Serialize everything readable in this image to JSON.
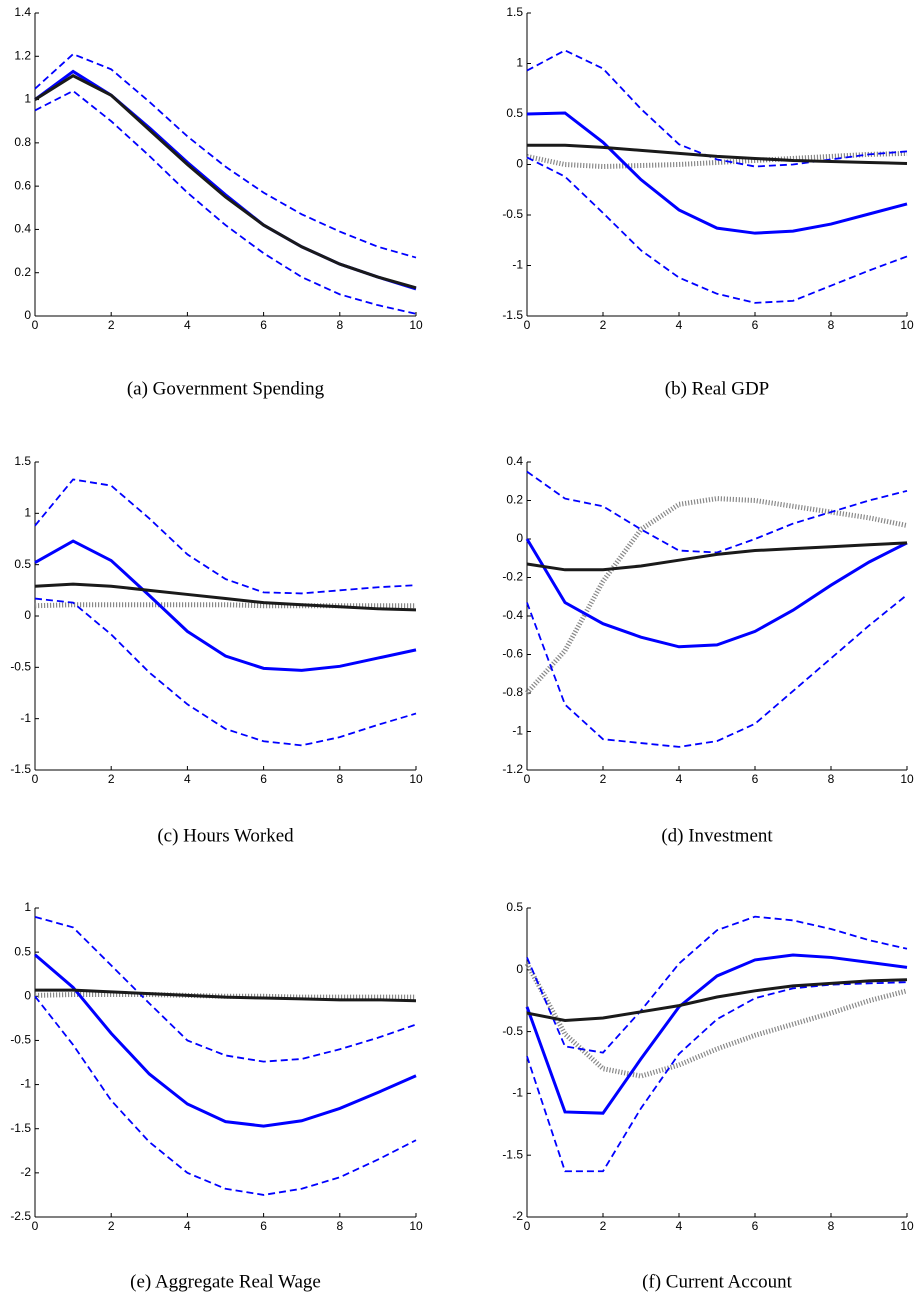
{
  "chart_data": [
    {
      "type": "line",
      "title": "(a)  Government Spending",
      "x": [
        0,
        1,
        2,
        3,
        4,
        5,
        6,
        7,
        8,
        9,
        10
      ],
      "xlim": [
        0,
        10
      ],
      "xticks": [
        0,
        2,
        4,
        6,
        8,
        10
      ],
      "ylim": [
        0,
        1.4
      ],
      "yticks": [
        0,
        0.2,
        0.4,
        0.6,
        0.8,
        1,
        1.2,
        1.4
      ],
      "series": [
        {
          "color": "#0000ff",
          "style": "dashed",
          "values": [
            1.05,
            1.21,
            1.14,
            0.99,
            0.83,
            0.69,
            0.57,
            0.47,
            0.39,
            0.32,
            0.27
          ]
        },
        {
          "color": "#0000ff",
          "style": "dashed",
          "values": [
            0.95,
            1.04,
            0.9,
            0.74,
            0.57,
            0.42,
            0.29,
            0.18,
            0.1,
            0.05,
            0.01
          ]
        },
        {
          "color": "#0000ff",
          "style": "solid",
          "values": [
            1,
            1.13,
            1.02,
            0.87,
            0.71,
            0.56,
            0.42,
            0.32,
            0.24,
            0.18,
            0.125
          ]
        },
        {
          "color": "#1a1a1a",
          "style": "solid",
          "values": [
            1,
            1.11,
            1.02,
            0.86,
            0.7,
            0.55,
            0.42,
            0.32,
            0.24,
            0.18,
            0.13
          ]
        }
      ]
    },
    {
      "type": "line",
      "title": "(b)  Real GDP",
      "x": [
        0,
        1,
        2,
        3,
        4,
        5,
        6,
        7,
        8,
        9,
        10
      ],
      "xlim": [
        0,
        10
      ],
      "xticks": [
        0,
        2,
        4,
        6,
        8,
        10
      ],
      "ylim": [
        -1.5,
        1.5
      ],
      "yticks": [
        -1.5,
        -1,
        -0.5,
        0,
        0.5,
        1,
        1.5
      ],
      "series": [
        {
          "color": "#888888",
          "style": "dotted",
          "values": [
            0.08,
            0.0,
            -0.02,
            -0.01,
            0.0,
            0.02,
            0.04,
            0.06,
            0.08,
            0.1,
            0.11
          ]
        },
        {
          "color": "#0000ff",
          "style": "dashed",
          "values": [
            0.93,
            1.13,
            0.95,
            0.55,
            0.2,
            0.05,
            -0.02,
            0.0,
            0.05,
            0.1,
            0.13
          ]
        },
        {
          "color": "#0000ff",
          "style": "dashed",
          "values": [
            0.07,
            -0.12,
            -0.48,
            -0.85,
            -1.12,
            -1.28,
            -1.37,
            -1.35,
            -1.2,
            -1.05,
            -0.91
          ]
        },
        {
          "color": "#0000ff",
          "style": "solid",
          "values": [
            0.5,
            0.51,
            0.22,
            -0.15,
            -0.45,
            -0.63,
            -0.68,
            -0.66,
            -0.59,
            -0.49,
            -0.39
          ]
        },
        {
          "color": "#1a1a1a",
          "style": "solid",
          "values": [
            0.19,
            0.19,
            0.17,
            0.14,
            0.11,
            0.08,
            0.06,
            0.04,
            0.03,
            0.02,
            0.01
          ]
        }
      ]
    },
    {
      "type": "line",
      "title": "(c)  Hours Worked",
      "x": [
        0,
        1,
        2,
        3,
        4,
        5,
        6,
        7,
        8,
        9,
        10
      ],
      "xlim": [
        0,
        10
      ],
      "xticks": [
        0,
        2,
        4,
        6,
        8,
        10
      ],
      "ylim": [
        -1.5,
        1.5
      ],
      "yticks": [
        -1.5,
        -1,
        -0.5,
        0,
        0.5,
        1,
        1.5
      ],
      "series": [
        {
          "color": "#888888",
          "style": "dotted",
          "values": [
            0.1,
            0.11,
            0.11,
            0.11,
            0.11,
            0.11,
            0.1,
            0.1,
            0.1,
            0.1,
            0.1
          ]
        },
        {
          "color": "#0000ff",
          "style": "dashed",
          "values": [
            0.88,
            1.33,
            1.27,
            0.95,
            0.6,
            0.36,
            0.23,
            0.22,
            0.25,
            0.28,
            0.3
          ]
        },
        {
          "color": "#0000ff",
          "style": "dashed",
          "values": [
            0.17,
            0.13,
            -0.18,
            -0.55,
            -0.86,
            -1.1,
            -1.22,
            -1.26,
            -1.18,
            -1.06,
            -0.95
          ]
        },
        {
          "color": "#0000ff",
          "style": "solid",
          "values": [
            0.52,
            0.73,
            0.54,
            0.2,
            -0.15,
            -0.39,
            -0.51,
            -0.53,
            -0.49,
            -0.41,
            -0.33
          ]
        },
        {
          "color": "#1a1a1a",
          "style": "solid",
          "values": [
            0.29,
            0.31,
            0.29,
            0.25,
            0.21,
            0.17,
            0.13,
            0.11,
            0.09,
            0.07,
            0.06
          ]
        }
      ]
    },
    {
      "type": "line",
      "title": "(d)  Investment",
      "x": [
        0,
        1,
        2,
        3,
        4,
        5,
        6,
        7,
        8,
        9,
        10
      ],
      "xlim": [
        0,
        10
      ],
      "xticks": [
        0,
        2,
        4,
        6,
        8,
        10
      ],
      "ylim": [
        -1.2,
        0.4
      ],
      "yticks": [
        -1.2,
        -1,
        -0.8,
        -0.6,
        -0.4,
        -0.2,
        0,
        0.2,
        0.4
      ],
      "series": [
        {
          "color": "#888888",
          "style": "dotted",
          "values": [
            -0.8,
            -0.58,
            -0.22,
            0.05,
            0.18,
            0.21,
            0.2,
            0.17,
            0.14,
            0.11,
            0.07
          ]
        },
        {
          "color": "#0000ff",
          "style": "dashed",
          "values": [
            0.35,
            0.21,
            0.17,
            0.05,
            -0.06,
            -0.07,
            0.0,
            0.08,
            0.14,
            0.2,
            0.25
          ]
        },
        {
          "color": "#0000ff",
          "style": "dashed",
          "values": [
            -0.33,
            -0.86,
            -1.04,
            -1.06,
            -1.08,
            -1.05,
            -0.96,
            -0.79,
            -0.62,
            -0.45,
            -0.29
          ]
        },
        {
          "color": "#0000ff",
          "style": "solid",
          "values": [
            0.0,
            -0.33,
            -0.44,
            -0.51,
            -0.56,
            -0.55,
            -0.48,
            -0.37,
            -0.24,
            -0.12,
            -0.02
          ]
        },
        {
          "color": "#1a1a1a",
          "style": "solid",
          "values": [
            -0.13,
            -0.16,
            -0.16,
            -0.14,
            -0.11,
            -0.08,
            -0.06,
            -0.05,
            -0.04,
            -0.03,
            -0.02
          ]
        }
      ]
    },
    {
      "type": "line",
      "title": "(e)  Aggregate Real Wage",
      "x": [
        0,
        1,
        2,
        3,
        4,
        5,
        6,
        7,
        8,
        9,
        10
      ],
      "xlim": [
        0,
        10
      ],
      "xticks": [
        0,
        2,
        4,
        6,
        8,
        10
      ],
      "ylim": [
        -2.5,
        1
      ],
      "yticks": [
        -2.5,
        -2,
        -1.5,
        -1,
        -0.5,
        0,
        0.5,
        1
      ],
      "series": [
        {
          "color": "#888888",
          "style": "dotted",
          "values": [
            0.01,
            0.02,
            0.02,
            0.02,
            0.01,
            0.0,
            0.0,
            -0.01,
            -0.01,
            -0.01,
            -0.01
          ]
        },
        {
          "color": "#0000ff",
          "style": "dashed",
          "values": [
            0.9,
            0.78,
            0.35,
            -0.08,
            -0.5,
            -0.67,
            -0.74,
            -0.71,
            -0.6,
            -0.47,
            -0.32
          ]
        },
        {
          "color": "#0000ff",
          "style": "dashed",
          "values": [
            0.0,
            -0.55,
            -1.18,
            -1.65,
            -2.0,
            -2.18,
            -2.25,
            -2.18,
            -2.05,
            -1.85,
            -1.63
          ]
        },
        {
          "color": "#0000ff",
          "style": "solid",
          "values": [
            0.47,
            0.1,
            -0.42,
            -0.88,
            -1.22,
            -1.42,
            -1.47,
            -1.41,
            -1.27,
            -1.09,
            -0.9
          ]
        },
        {
          "color": "#1a1a1a",
          "style": "solid",
          "values": [
            0.07,
            0.07,
            0.05,
            0.03,
            0.01,
            -0.01,
            -0.02,
            -0.03,
            -0.04,
            -0.04,
            -0.05
          ]
        }
      ]
    },
    {
      "type": "line",
      "title": "(f)  Current Account",
      "x": [
        0,
        1,
        2,
        3,
        4,
        5,
        6,
        7,
        8,
        9,
        10
      ],
      "xlim": [
        0,
        10
      ],
      "xticks": [
        0,
        2,
        4,
        6,
        8,
        10
      ],
      "ylim": [
        -2,
        0.5
      ],
      "yticks": [
        -2,
        -1.5,
        -1,
        -0.5,
        0,
        0.5
      ],
      "series": [
        {
          "color": "#888888",
          "style": "dotted",
          "values": [
            0.05,
            -0.52,
            -0.8,
            -0.86,
            -0.77,
            -0.64,
            -0.53,
            -0.44,
            -0.35,
            -0.25,
            -0.17
          ]
        },
        {
          "color": "#0000ff",
          "style": "dashed",
          "values": [
            0.1,
            -0.62,
            -0.67,
            -0.33,
            0.05,
            0.32,
            0.43,
            0.4,
            0.33,
            0.24,
            0.17
          ]
        },
        {
          "color": "#0000ff",
          "style": "dashed",
          "values": [
            -0.7,
            -1.63,
            -1.63,
            -1.12,
            -0.68,
            -0.4,
            -0.23,
            -0.15,
            -0.12,
            -0.11,
            -0.1
          ]
        },
        {
          "color": "#0000ff",
          "style": "solid",
          "values": [
            -0.3,
            -1.15,
            -1.16,
            -0.72,
            -0.3,
            -0.05,
            0.08,
            0.12,
            0.1,
            0.06,
            0.02
          ]
        },
        {
          "color": "#1a1a1a",
          "style": "solid",
          "values": [
            -0.35,
            -0.41,
            -0.39,
            -0.34,
            -0.29,
            -0.22,
            -0.17,
            -0.13,
            -0.11,
            -0.09,
            -0.08
          ]
        }
      ]
    }
  ]
}
